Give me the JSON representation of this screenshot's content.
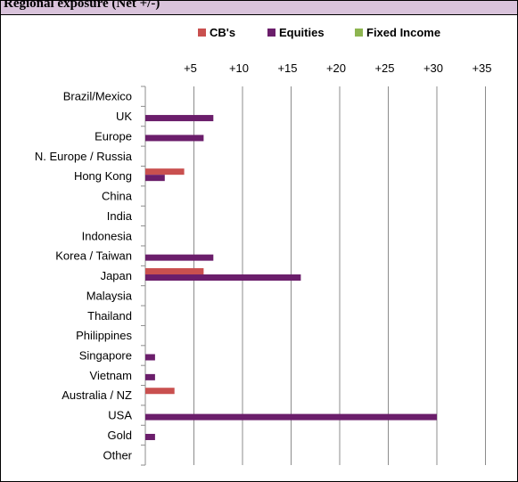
{
  "header": {
    "text": "Regional exposure (Net +/-)"
  },
  "colors": {
    "cbs": "#c9504f",
    "equities": "#6b1e6b",
    "fixed_income": "#8db550",
    "grid": "#8c8c8c",
    "axis": "#8c8c8c",
    "header_bg": "#d9c3db"
  },
  "chart_data": {
    "type": "bar",
    "orientation": "horizontal",
    "categories": [
      "Brazil/Mexico",
      "UK",
      "Europe",
      "N. Europe / Russia",
      "Hong Kong",
      "China",
      "India",
      "Indonesia",
      "Korea / Taiwan",
      "Japan",
      "Malaysia",
      "Thailand",
      "Philippines",
      "Singapore",
      "Vietnam",
      "Australia / NZ",
      "USA",
      "Gold",
      "Other"
    ],
    "series": [
      {
        "name": "CB's",
        "color": "#c9504f",
        "values": [
          0,
          0,
          0,
          0,
          4,
          0,
          0,
          0,
          0,
          6,
          0,
          0,
          0,
          0,
          0,
          3,
          0,
          0,
          0
        ]
      },
      {
        "name": "Equities",
        "color": "#6b1e6b",
        "values": [
          0,
          7,
          6,
          0,
          2,
          0,
          0,
          0,
          7,
          16,
          0,
          0,
          0,
          1,
          1,
          0,
          30,
          1,
          0
        ]
      },
      {
        "name": "Fixed Income",
        "color": "#8db550",
        "values": [
          0,
          0,
          0,
          0,
          0,
          0,
          0,
          0,
          0,
          0,
          0,
          0,
          0,
          0,
          0,
          0,
          0,
          0,
          0
        ]
      }
    ],
    "xlim": [
      0,
      35
    ],
    "xticks": [
      5,
      10,
      15,
      20,
      25,
      30,
      35
    ],
    "xtick_labels": [
      "+5",
      "+10",
      "+15",
      "+20",
      "+25",
      "+30",
      "+35"
    ],
    "grid": true,
    "legend_position": "top"
  }
}
